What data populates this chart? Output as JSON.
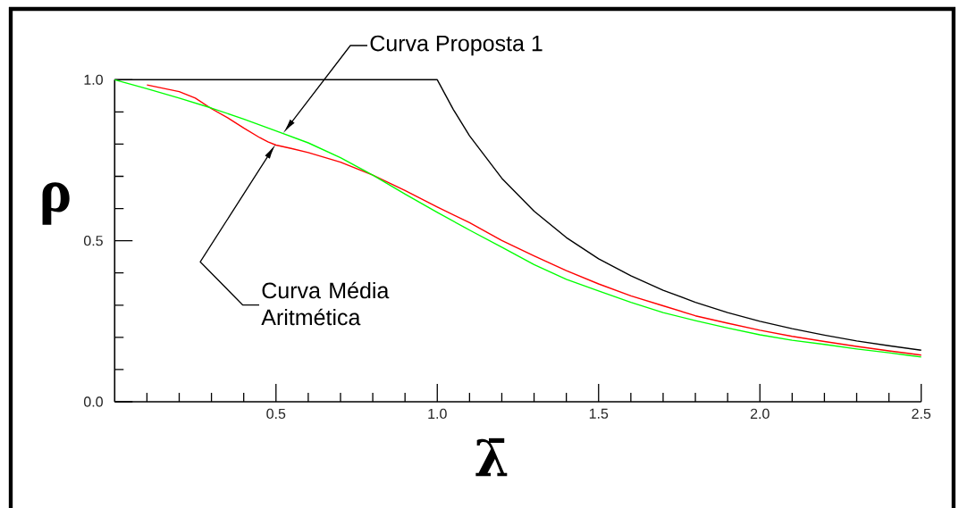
{
  "chart_data": {
    "type": "line",
    "xlabel": "λ̄",
    "ylabel": "ρ",
    "xlim": [
      0,
      2.5
    ],
    "ylim": [
      0,
      1
    ],
    "xticks": [
      {
        "value": 0.1,
        "label": null
      },
      {
        "value": 0.2,
        "label": null
      },
      {
        "value": 0.3,
        "label": null
      },
      {
        "value": 0.4,
        "label": null
      },
      {
        "value": 0.5,
        "label": "0.5"
      },
      {
        "value": 0.6,
        "label": null
      },
      {
        "value": 0.7,
        "label": null
      },
      {
        "value": 0.8,
        "label": null
      },
      {
        "value": 0.9,
        "label": null
      },
      {
        "value": 1.0,
        "label": "1.0"
      },
      {
        "value": 1.1,
        "label": null
      },
      {
        "value": 1.2,
        "label": null
      },
      {
        "value": 1.3,
        "label": null
      },
      {
        "value": 1.4,
        "label": null
      },
      {
        "value": 1.5,
        "label": "1.5"
      },
      {
        "value": 1.6,
        "label": null
      },
      {
        "value": 1.7,
        "label": null
      },
      {
        "value": 1.8,
        "label": null
      },
      {
        "value": 1.9,
        "label": null
      },
      {
        "value": 2.0,
        "label": "2.0"
      },
      {
        "value": 2.1,
        "label": null
      },
      {
        "value": 2.2,
        "label": null
      },
      {
        "value": 2.3,
        "label": null
      },
      {
        "value": 2.4,
        "label": null
      },
      {
        "value": 2.5,
        "label": "2.5"
      }
    ],
    "yticks": [
      {
        "value": 0,
        "label": "0.0"
      },
      {
        "value": 0.1,
        "label": null
      },
      {
        "value": 0.2,
        "label": null
      },
      {
        "value": 0.3,
        "label": null
      },
      {
        "value": 0.4,
        "label": null
      },
      {
        "value": 0.5,
        "label": "0.5"
      },
      {
        "value": 0.6,
        "label": null
      },
      {
        "value": 0.7,
        "label": null
      },
      {
        "value": 0.8,
        "label": null
      },
      {
        "value": 0.9,
        "label": null
      },
      {
        "value": 1.0,
        "label": "1.0"
      }
    ],
    "series": [
      {
        "color": "#000000",
        "x": [
          0,
          1,
          1.05,
          1.1,
          1.2,
          1.3,
          1.4,
          1.5,
          1.6,
          1.7,
          1.8,
          1.9,
          2.0,
          2.1,
          2.2,
          2.3,
          2.4,
          2.5
        ],
        "values": [
          1,
          1,
          0.907,
          0.826,
          0.694,
          0.592,
          0.51,
          0.444,
          0.391,
          0.346,
          0.309,
          0.277,
          0.25,
          0.227,
          0.207,
          0.189,
          0.174,
          0.16
        ]
      },
      {
        "color": "#ff0000",
        "x": [
          0.1,
          0.2,
          0.25,
          0.3,
          0.35,
          0.4,
          0.45,
          0.475,
          0.5,
          0.55,
          0.6,
          0.7,
          0.8,
          0.9,
          1.0,
          1.1,
          1.2,
          1.3,
          1.4,
          1.5,
          1.6,
          1.7,
          1.8,
          1.9,
          2.0,
          2.1,
          2.2,
          2.3,
          2.4,
          2.5
        ],
        "values": [
          0.984,
          0.963,
          0.943,
          0.91,
          0.882,
          0.85,
          0.82,
          0.807,
          0.797,
          0.786,
          0.774,
          0.744,
          0.704,
          0.656,
          0.605,
          0.556,
          0.501,
          0.453,
          0.407,
          0.366,
          0.329,
          0.298,
          0.267,
          0.244,
          0.222,
          0.203,
          0.187,
          0.172,
          0.158,
          0.145
        ]
      },
      {
        "color": "#00ff00",
        "x": [
          0,
          0.1,
          0.2,
          0.3,
          0.4,
          0.5,
          0.6,
          0.7,
          0.8,
          0.9,
          1.0,
          1.1,
          1.2,
          1.3,
          1.4,
          1.5,
          1.6,
          1.7,
          1.8,
          1.9,
          2.0,
          2.1,
          2.2,
          2.3,
          2.4,
          2.5
        ],
        "values": [
          1,
          0.972,
          0.943,
          0.912,
          0.878,
          0.841,
          0.804,
          0.758,
          0.704,
          0.645,
          0.588,
          0.533,
          0.48,
          0.426,
          0.38,
          0.344,
          0.309,
          0.277,
          0.252,
          0.229,
          0.208,
          0.191,
          0.178,
          0.164,
          0.152,
          0.139
        ]
      }
    ],
    "annotations": [
      "Curva Proposta 1",
      "Curva Média Aritmética"
    ],
    "marker": "none",
    "line_style": "solid"
  }
}
